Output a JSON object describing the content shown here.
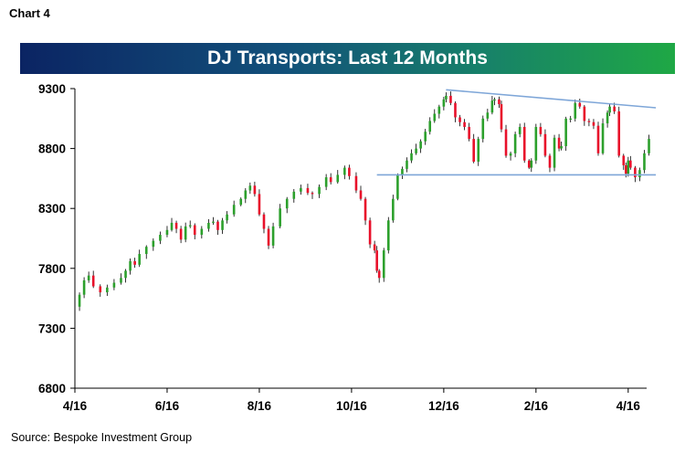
{
  "header": {
    "chart_label": "Chart 4"
  },
  "footer": {
    "source": "Source: Bespoke Investment Group"
  },
  "chart_data": {
    "type": "candlestick",
    "title": "DJ Transports: Last 12 Months",
    "ylim": [
      6800,
      9300
    ],
    "yticks": [
      9300,
      8800,
      8300,
      7800,
      7300,
      6800
    ],
    "xticks": [
      "4/16",
      "6/16",
      "8/16",
      "10/16",
      "12/16",
      "2/16",
      "4/16"
    ],
    "x_range_months": [
      0,
      12.4
    ],
    "colors": {
      "up": "#2ca02c",
      "down": "#e8102a",
      "wick": "#000000",
      "trendline": "#7ea6d8",
      "title_start": "#0b2463",
      "title_end": "#1fa845"
    },
    "series_close": [
      [
        0.0,
        7480
      ],
      [
        0.1,
        7580
      ],
      [
        0.2,
        7700
      ],
      [
        0.3,
        7740
      ],
      [
        0.4,
        7650
      ],
      [
        0.55,
        7600
      ],
      [
        0.7,
        7640
      ],
      [
        0.85,
        7680
      ],
      [
        1.0,
        7720
      ],
      [
        1.1,
        7780
      ],
      [
        1.2,
        7860
      ],
      [
        1.3,
        7830
      ],
      [
        1.4,
        7920
      ],
      [
        1.55,
        7980
      ],
      [
        1.7,
        8030
      ],
      [
        1.85,
        8080
      ],
      [
        2.0,
        8120
      ],
      [
        2.1,
        8180
      ],
      [
        2.2,
        8130
      ],
      [
        2.3,
        8040
      ],
      [
        2.4,
        8150
      ],
      [
        2.5,
        8160
      ],
      [
        2.6,
        8080
      ],
      [
        2.75,
        8130
      ],
      [
        2.9,
        8180
      ],
      [
        3.0,
        8190
      ],
      [
        3.1,
        8120
      ],
      [
        3.2,
        8200
      ],
      [
        3.3,
        8250
      ],
      [
        3.45,
        8330
      ],
      [
        3.6,
        8380
      ],
      [
        3.7,
        8450
      ],
      [
        3.8,
        8490
      ],
      [
        3.9,
        8420
      ],
      [
        4.0,
        8250
      ],
      [
        4.1,
        8130
      ],
      [
        4.2,
        7990
      ],
      [
        4.3,
        8150
      ],
      [
        4.45,
        8300
      ],
      [
        4.6,
        8380
      ],
      [
        4.75,
        8440
      ],
      [
        4.9,
        8470
      ],
      [
        5.05,
        8430
      ],
      [
        5.15,
        8420
      ],
      [
        5.3,
        8480
      ],
      [
        5.45,
        8560
      ],
      [
        5.55,
        8520
      ],
      [
        5.7,
        8580
      ],
      [
        5.85,
        8640
      ],
      [
        5.95,
        8570
      ],
      [
        6.1,
        8450
      ],
      [
        6.2,
        8380
      ],
      [
        6.3,
        8200
      ],
      [
        6.4,
        8000
      ],
      [
        6.5,
        7950
      ],
      [
        6.55,
        7780
      ],
      [
        6.6,
        7720
      ],
      [
        6.7,
        7950
      ],
      [
        6.8,
        8200
      ],
      [
        6.9,
        8380
      ],
      [
        7.0,
        8580
      ],
      [
        7.1,
        8630
      ],
      [
        7.2,
        8700
      ],
      [
        7.3,
        8760
      ],
      [
        7.4,
        8800
      ],
      [
        7.5,
        8860
      ],
      [
        7.6,
        8940
      ],
      [
        7.7,
        9030
      ],
      [
        7.8,
        9090
      ],
      [
        7.9,
        9150
      ],
      [
        8.0,
        9210
      ],
      [
        8.05,
        9240
      ],
      [
        8.15,
        9180
      ],
      [
        8.25,
        9060
      ],
      [
        8.35,
        9020
      ],
      [
        8.45,
        8980
      ],
      [
        8.55,
        8880
      ],
      [
        8.65,
        8690
      ],
      [
        8.75,
        8880
      ],
      [
        8.85,
        9050
      ],
      [
        8.95,
        9100
      ],
      [
        9.05,
        9200
      ],
      [
        9.1,
        9210
      ],
      [
        9.2,
        9170
      ],
      [
        9.25,
        8960
      ],
      [
        9.35,
        8740
      ],
      [
        9.45,
        8760
      ],
      [
        9.55,
        8920
      ],
      [
        9.65,
        8980
      ],
      [
        9.75,
        8700
      ],
      [
        9.85,
        8640
      ],
      [
        9.9,
        8700
      ],
      [
        10.0,
        8980
      ],
      [
        10.1,
        8920
      ],
      [
        10.2,
        8740
      ],
      [
        10.3,
        8640
      ],
      [
        10.4,
        8890
      ],
      [
        10.5,
        8800
      ],
      [
        10.55,
        8820
      ],
      [
        10.65,
        9050
      ],
      [
        10.75,
        9050
      ],
      [
        10.85,
        9180
      ],
      [
        10.95,
        9150
      ],
      [
        11.05,
        9030
      ],
      [
        11.15,
        9020
      ],
      [
        11.25,
        8990
      ],
      [
        11.35,
        8760
      ],
      [
        11.45,
        9010
      ],
      [
        11.55,
        9100
      ],
      [
        11.6,
        9150
      ],
      [
        11.7,
        9110
      ],
      [
        11.8,
        8740
      ],
      [
        11.9,
        8660
      ],
      [
        11.95,
        8590
      ],
      [
        12.0,
        8700
      ],
      [
        12.05,
        8640
      ],
      [
        12.15,
        8560
      ],
      [
        12.25,
        8620
      ],
      [
        12.35,
        8760
      ],
      [
        12.45,
        8880
      ]
    ],
    "trendlines": [
      {
        "from": [
          8.05,
          9290
        ],
        "to": [
          12.6,
          9140
        ]
      },
      {
        "from": [
          6.55,
          8580
        ],
        "to": [
          12.6,
          8580
        ]
      }
    ]
  }
}
